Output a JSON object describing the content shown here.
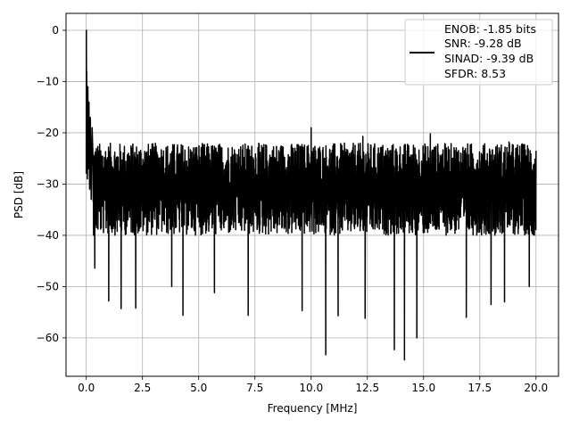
{
  "chart_data": {
    "type": "line",
    "title": "",
    "xlabel": "Frequency [MHz]",
    "ylabel": "PSD [dB]",
    "xlim": [
      -0.9,
      21.0
    ],
    "ylim": [
      -67.5,
      3.3
    ],
    "xticks": [
      0.0,
      2.5,
      5.0,
      7.5,
      10.0,
      12.5,
      15.0,
      17.5,
      20.0
    ],
    "xtick_labels": [
      "0.0",
      "2.5",
      "5.0",
      "7.5",
      "10.0",
      "12.5",
      "15.0",
      "17.5",
      "20.0"
    ],
    "yticks": [
      0,
      -10,
      -20,
      -30,
      -40,
      -50,
      -60
    ],
    "ytick_labels": [
      "0",
      "−10",
      "−20",
      "−30",
      "−40",
      "−50",
      "−60"
    ],
    "grid": true,
    "legend_position": "top-right",
    "line_color": "#000000",
    "series": [
      {
        "name": "",
        "legend_lines": [
          "ENOB: -1.85 bits",
          "SNR: -9.28 dB",
          "SINAD: -9.39 dB",
          "SFDR: 8.53"
        ],
        "start_values": [
          {
            "x": 0.0,
            "y": -28.0
          },
          {
            "x": 0.005,
            "y": 0.0
          },
          {
            "x": 0.01,
            "y": -16.0
          },
          {
            "x": 0.02,
            "y": -8.0
          },
          {
            "x": 0.03,
            "y": -24.0
          },
          {
            "x": 0.04,
            "y": -12.0
          },
          {
            "x": 0.05,
            "y": -29.0
          },
          {
            "x": 0.07,
            "y": -11.0
          },
          {
            "x": 0.09,
            "y": -27.0
          },
          {
            "x": 0.12,
            "y": -14.0
          },
          {
            "x": 0.15,
            "y": -31.0
          },
          {
            "x": 0.18,
            "y": -17.0
          },
          {
            "x": 0.22,
            "y": -33.0
          },
          {
            "x": 0.26,
            "y": -19.0
          }
        ],
        "noise_floor": {
          "x_start": 0.3,
          "x_end": 20.0,
          "median": -30.5,
          "typical_min": -40.0,
          "typical_max": -22.0,
          "observed_peak_max": -19.0,
          "observed_min": -64.3
        },
        "notable_dips": [
          {
            "x": 0.38,
            "y": -46.4
          },
          {
            "x": 1.0,
            "y": -52.8
          },
          {
            "x": 1.55,
            "y": -54.3
          },
          {
            "x": 2.2,
            "y": -54.2
          },
          {
            "x": 3.8,
            "y": -50.0
          },
          {
            "x": 4.3,
            "y": -55.6
          },
          {
            "x": 5.7,
            "y": -51.2
          },
          {
            "x": 7.2,
            "y": -55.6
          },
          {
            "x": 9.6,
            "y": -54.7
          },
          {
            "x": 10.65,
            "y": -63.3
          },
          {
            "x": 11.2,
            "y": -55.7
          },
          {
            "x": 12.4,
            "y": -56.2
          },
          {
            "x": 13.7,
            "y": -62.3
          },
          {
            "x": 14.15,
            "y": -64.3
          },
          {
            "x": 14.7,
            "y": -60.0
          },
          {
            "x": 16.9,
            "y": -56.0
          },
          {
            "x": 18.0,
            "y": -53.5
          },
          {
            "x": 18.6,
            "y": -53.0
          },
          {
            "x": 19.7,
            "y": -50.0
          }
        ],
        "notable_peaks": [
          {
            "x": 10.0,
            "y": -19.0
          },
          {
            "x": 12.3,
            "y": -20.7
          },
          {
            "x": 15.3,
            "y": -20.2
          },
          {
            "x": 18.8,
            "y": -21.8
          },
          {
            "x": 19.4,
            "y": -22.3
          }
        ]
      }
    ]
  }
}
